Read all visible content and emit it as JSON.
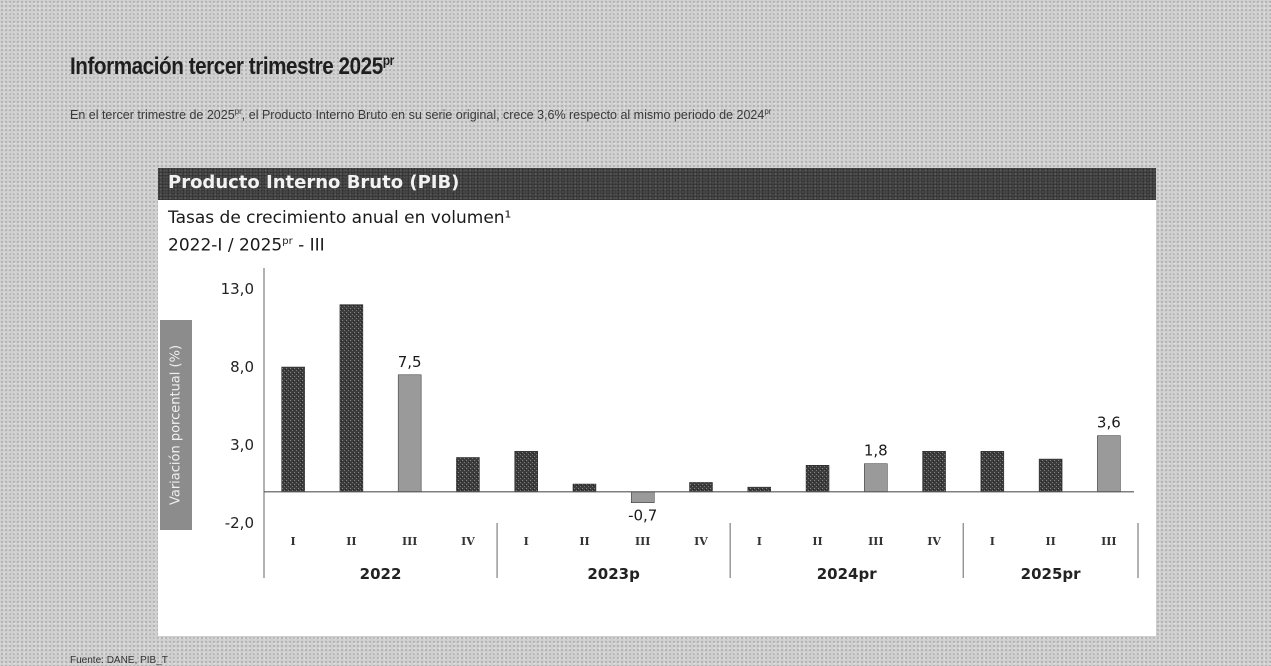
{
  "page": {
    "title": "Información tercer trimestre 2025",
    "title_sup": "pr",
    "intro_part1": "En el tercer trimestre de 2025",
    "intro_sup1": "pr",
    "intro_part2": ", el Producto Interno Bruto en su serie original, crece 3,6% respecto al mismo periodo de 2024",
    "intro_sup2": "pr",
    "source": "Fuente: DANE, PIB_T"
  },
  "card": {
    "header": "Producto Interno Bruto (PIB)",
    "subtitle_line1": "Tasas de crecimiento anual en volumen¹",
    "subtitle_line2_a": "2022-I / 2025",
    "subtitle_line2_sup": "pr",
    "subtitle_line2_b": " - III"
  },
  "chart_data": {
    "type": "bar",
    "ylabel": "Variación porcentual (%)",
    "ylim": [
      -2.0,
      13.0
    ],
    "yticks": [
      13.0,
      8.0,
      3.0,
      -2.0
    ],
    "ytick_labels": [
      "13,0",
      "8,0",
      "3,0",
      "-2,0"
    ],
    "groups": [
      {
        "label": "2022",
        "quarters": [
          "I",
          "II",
          "III",
          "IV"
        ]
      },
      {
        "label": "2023p",
        "quarters": [
          "I",
          "II",
          "III",
          "IV"
        ]
      },
      {
        "label": "2024pr",
        "quarters": [
          "I",
          "II",
          "III",
          "IV"
        ]
      },
      {
        "label": "2025pr",
        "quarters": [
          "I",
          "II",
          "III"
        ]
      }
    ],
    "values": [
      8.0,
      12.0,
      7.5,
      2.2,
      2.6,
      0.5,
      -0.7,
      0.6,
      0.3,
      1.7,
      1.8,
      2.6,
      2.6,
      2.1,
      3.6
    ],
    "highlight": [
      false,
      false,
      true,
      false,
      false,
      false,
      true,
      false,
      false,
      false,
      true,
      false,
      false,
      false,
      true
    ],
    "data_labels": [
      "",
      "",
      "7,5",
      "",
      "",
      "",
      "-0,7",
      "",
      "",
      "",
      "1,8",
      "",
      "",
      "",
      "3,6"
    ],
    "colors": {
      "dark": "#3c3c3c",
      "highlight": "#9a9a9a",
      "axis": "#666666"
    }
  }
}
